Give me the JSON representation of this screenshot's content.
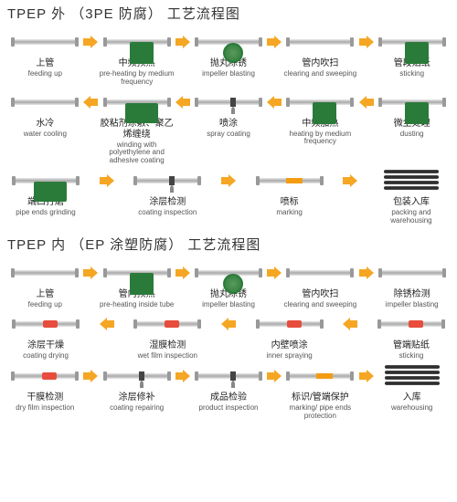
{
  "colors": {
    "green": "#2a7a3a",
    "arrow": "#f5a623",
    "red": "#e74c3c",
    "text": "#222"
  },
  "flow1": {
    "title": "TPEP 外 （3PE 防腐） 工艺流程图",
    "rows": [
      {
        "direction": "right",
        "steps": [
          {
            "cn": "上管",
            "en": "feeding up",
            "icon": "pipe"
          },
          {
            "cn": "中频预热",
            "en": "pre-heating by medium frequency",
            "icon": "green-box"
          },
          {
            "cn": "抛丸除锈",
            "en": "impeller blasting",
            "icon": "blast"
          },
          {
            "cn": "管内吹扫",
            "en": "clearing and sweeping",
            "icon": "pipe"
          },
          {
            "cn": "管段贴纸",
            "en": "sticking",
            "icon": "green-box"
          }
        ]
      },
      {
        "direction": "left",
        "steps": [
          {
            "cn": "水冷",
            "en": "water cooling",
            "icon": "pipe"
          },
          {
            "cn": "胶粘剂涂敷、聚乙烯缠绕",
            "en": "winding with polyethylene and adhesive coating",
            "icon": "green-wide"
          },
          {
            "cn": "喷涂",
            "en": "spray coating",
            "icon": "spray"
          },
          {
            "cn": "中频加热",
            "en": "heating by medium frequency",
            "icon": "green-box"
          },
          {
            "cn": "微尘处理",
            "en": "dusting",
            "icon": "green-box"
          }
        ]
      },
      {
        "direction": "right",
        "steps": [
          {
            "cn": "端口打磨",
            "en": "pipe ends grinding",
            "icon": "green-wide"
          },
          {
            "cn": "涂层检测",
            "en": "coating inspection",
            "icon": "spray"
          },
          {
            "cn": "喷标",
            "en": "marking",
            "icon": "mark"
          },
          {
            "cn": "包装入库",
            "en": "packing and warehousing",
            "icon": "stack"
          }
        ]
      }
    ]
  },
  "flow2": {
    "title": "TPEP 内 （EP 涂塑防腐） 工艺流程图",
    "rows": [
      {
        "direction": "right",
        "steps": [
          {
            "cn": "上管",
            "en": "feeding up",
            "icon": "pipe"
          },
          {
            "cn": "管内预热",
            "en": "pre-heating inside tube",
            "icon": "green-box"
          },
          {
            "cn": "抛丸除锈",
            "en": "impeller blasting",
            "icon": "blast"
          },
          {
            "cn": "管内吹扫",
            "en": "clearing and sweeping",
            "icon": "pipe"
          },
          {
            "cn": "除锈检测",
            "en": "impeller blasting",
            "icon": "pipe"
          }
        ]
      },
      {
        "direction": "left",
        "steps": [
          {
            "cn": "涂层干燥",
            "en": "coating drying",
            "icon": "red-band"
          },
          {
            "cn": "湿膜检测",
            "en": "wet film inspection",
            "icon": "red-band"
          },
          {
            "cn": "内壁喷涂",
            "en": "inner spraying",
            "icon": "red-band"
          },
          {
            "cn": "管端贴纸",
            "en": "sticking",
            "icon": "red-band"
          }
        ]
      },
      {
        "direction": "right",
        "steps": [
          {
            "cn": "干膜检测",
            "en": "dry film inspection",
            "icon": "red-band"
          },
          {
            "cn": "涂层修补",
            "en": "coating repairing",
            "icon": "spray"
          },
          {
            "cn": "成品检验",
            "en": "product inspection",
            "icon": "spray"
          },
          {
            "cn": "标识/管端保护",
            "en": "marking/ pipe ends protection",
            "icon": "mark"
          },
          {
            "cn": "入库",
            "en": "warehousing",
            "icon": "stack"
          }
        ]
      }
    ]
  }
}
